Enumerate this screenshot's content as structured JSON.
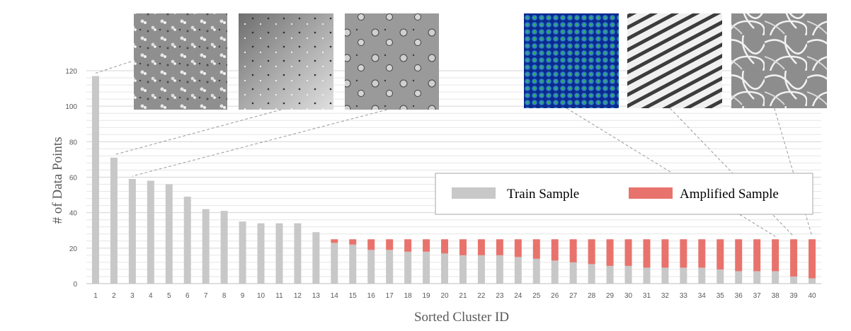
{
  "chart_data": {
    "type": "bar",
    "stacked": true,
    "xlabel": "Sorted Cluster ID",
    "ylabel": "# of  Data Points",
    "ylim": [
      0,
      120
    ],
    "yticks": [
      "0",
      "20",
      "40",
      "60",
      "80",
      "100",
      "120"
    ],
    "categories": [
      "1",
      "2",
      "3",
      "4",
      "5",
      "6",
      "7",
      "8",
      "9",
      "10",
      "11",
      "12",
      "13",
      "14",
      "15",
      "16",
      "17",
      "18",
      "19",
      "20",
      "21",
      "22",
      "23",
      "24",
      "25",
      "26",
      "27",
      "28",
      "29",
      "30",
      "31",
      "32",
      "33",
      "34",
      "35",
      "36",
      "37",
      "38",
      "39",
      "40"
    ],
    "series": [
      {
        "name": "Train Sample",
        "color": "#c8c8c8",
        "values": [
          117,
          71,
          59,
          58,
          56,
          49,
          42,
          41,
          35,
          34,
          34,
          34,
          29,
          23,
          22,
          19,
          19,
          18,
          18,
          17,
          16,
          16,
          16,
          15,
          14,
          13,
          12,
          11,
          10,
          10,
          9,
          9,
          9,
          9,
          8,
          7,
          7,
          7,
          4,
          3
        ]
      },
      {
        "name": "Amplified Sample",
        "color": "#e8736c",
        "values": [
          0,
          0,
          0,
          0,
          0,
          0,
          0,
          0,
          0,
          0,
          0,
          0,
          0,
          2,
          3,
          6,
          6,
          7,
          7,
          8,
          9,
          9,
          9,
          10,
          11,
          12,
          13,
          14,
          15,
          15,
          16,
          16,
          16,
          16,
          17,
          18,
          18,
          18,
          21,
          22
        ]
      }
    ],
    "grid": true,
    "legend_position": "right",
    "thumbnails": [
      {
        "name": "thumb-cluster-1",
        "cluster": "1",
        "style": "speckle"
      },
      {
        "name": "thumb-cluster-2",
        "cluster": "2",
        "style": "blur"
      },
      {
        "name": "thumb-cluster-3",
        "cluster": "3",
        "style": "round-cells"
      },
      {
        "name": "thumb-cluster-38",
        "cluster": "38",
        "style": "fluorescent"
      },
      {
        "name": "thumb-cluster-39",
        "cluster": "39",
        "style": "stripes"
      },
      {
        "name": "thumb-cluster-40",
        "cluster": "40",
        "style": "network"
      }
    ]
  }
}
